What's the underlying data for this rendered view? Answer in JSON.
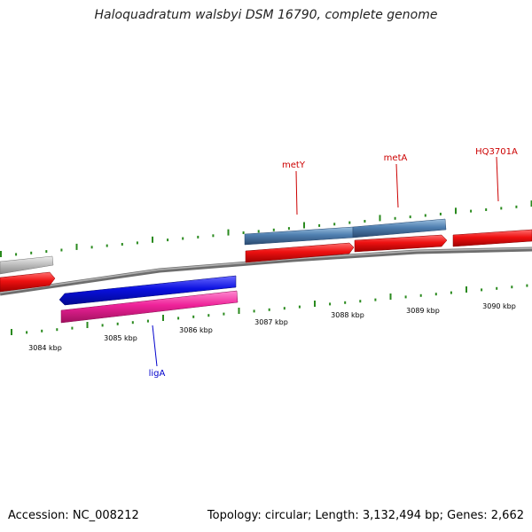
{
  "title": "Haloquadratum walsbyi DSM 16790, complete genome",
  "accession": "Accession: NC_008212",
  "topology": "Topology: circular; Length: 3,132,494 bp; Genes: 2,662",
  "scale_labels": [
    "3084 kbp",
    "3085 kbp",
    "3086 kbp",
    "3087 kbp",
    "3088 kbp",
    "3089 kbp",
    "3090 kbp"
  ],
  "gene_labels": {
    "metY": "metY",
    "metA": "metA",
    "HQ3701A": "HQ3701A",
    "ligA": "ligA"
  },
  "colors": {
    "backbone": "#8a8a8a",
    "forward_cds": "#ee1111",
    "reverse_cds": "#0a10e0",
    "reverse_gene": "#ee2299",
    "rna_or_other": "#4f7fb0",
    "grey_feature": "#bbbbbb",
    "tick": "#2a8a1e"
  }
}
